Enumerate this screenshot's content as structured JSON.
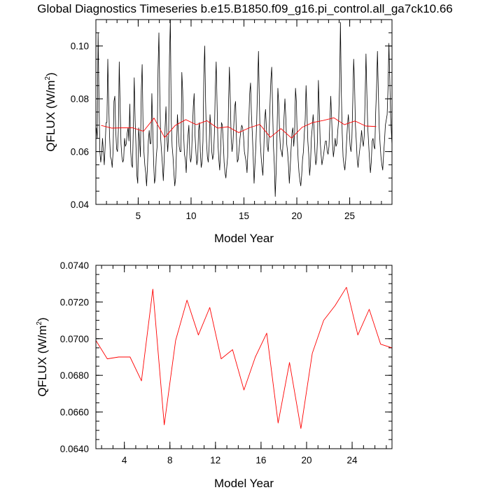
{
  "page": {
    "title": "Global Diagnostics Timeseries b.e15.B1850.f09_g16.pi_control.all_ga7ck10.66"
  },
  "colors": {
    "monthly_line": "#000000",
    "annual_line": "#ff0000",
    "frame": "#000000",
    "background": "#ffffff"
  },
  "chart_data": [
    {
      "type": "line",
      "title": "Global Diagnostics Timeseries b.e15.B1850.f09_g16.pi_control.all_ga7ck10.66",
      "xlabel": "Model Year",
      "ylabel": "QFLUX (W/m",
      "ylabel_superscript": "2",
      "ylabel_close": ")",
      "xlim": [
        1,
        29
      ],
      "ylim": [
        0.04,
        0.11
      ],
      "x_ticks": [
        5,
        10,
        15,
        20,
        25
      ],
      "x_tick_labels": [
        "5",
        "10",
        "15",
        "20",
        "25"
      ],
      "y_ticks": [
        0.04,
        0.06,
        0.08,
        0.1
      ],
      "y_tick_labels": [
        "0.04",
        "0.06",
        "0.08",
        "0.10"
      ],
      "grid": false,
      "legend": "none",
      "series": [
        {
          "style": "monthly",
          "color": "#000000",
          "x_start": 1.042,
          "x_step": 0.08333,
          "values": [
            0.069,
            0.065,
            0.105,
            0.08,
            0.06,
            0.056,
            0.059,
            0.065,
            0.06,
            0.055,
            0.062,
            0.071,
            0.071,
            0.095,
            0.078,
            0.066,
            0.058,
            0.057,
            0.054,
            0.06,
            0.079,
            0.081,
            0.068,
            0.061,
            0.06,
            0.068,
            0.094,
            0.077,
            0.063,
            0.058,
            0.056,
            0.057,
            0.065,
            0.062,
            0.063,
            0.067,
            0.069,
            0.064,
            0.078,
            0.06,
            0.055,
            0.054,
            0.069,
            0.088,
            0.072,
            0.062,
            0.051,
            0.048,
            0.069,
            0.064,
            0.058,
            0.083,
            0.093,
            0.07,
            0.06,
            0.055,
            0.052,
            0.047,
            0.054,
            0.064,
            0.068,
            0.063,
            0.063,
            0.082,
            0.069,
            0.056,
            0.048,
            0.05,
            0.058,
            0.062,
            0.091,
            0.105,
            0.082,
            0.065,
            0.06,
            0.055,
            0.049,
            0.057,
            0.069,
            0.077,
            0.066,
            0.06,
            0.066,
            0.096,
            0.11,
            0.072,
            0.062,
            0.058,
            0.052,
            0.047,
            0.05,
            0.061,
            0.074,
            0.068,
            0.062,
            0.06,
            0.06,
            0.09,
            0.083,
            0.067,
            0.059,
            0.057,
            0.052,
            0.061,
            0.066,
            0.07,
            0.059,
            0.056,
            0.058,
            0.068,
            0.077,
            0.082,
            0.066,
            0.06,
            0.055,
            0.057,
            0.068,
            0.071,
            0.06,
            0.054,
            0.056,
            0.064,
            0.089,
            0.1,
            0.079,
            0.064,
            0.058,
            0.056,
            0.062,
            0.074,
            0.069,
            0.06,
            0.057,
            0.059,
            0.067,
            0.084,
            0.094,
            0.078,
            0.063,
            0.057,
            0.053,
            0.06,
            0.071,
            0.07,
            0.064,
            0.056,
            0.052,
            0.05,
            0.054,
            0.058,
            0.078,
            0.092,
            0.08,
            0.065,
            0.06,
            0.063,
            0.07,
            0.077,
            0.079,
            0.065,
            0.056,
            0.057,
            0.061,
            0.065,
            0.068,
            0.07,
            0.069,
            0.066,
            0.06,
            0.058,
            0.056,
            0.052,
            0.06,
            0.071,
            0.082,
            0.086,
            0.074,
            0.067,
            0.058,
            0.048,
            0.055,
            0.062,
            0.072,
            0.085,
            0.098,
            0.079,
            0.064,
            0.058,
            0.054,
            0.051,
            0.06,
            0.072,
            0.076,
            0.069,
            0.062,
            0.06,
            0.066,
            0.077,
            0.087,
            0.092,
            0.077,
            0.062,
            0.055,
            0.043,
            0.052,
            0.066,
            0.084,
            0.078,
            0.067,
            0.061,
            0.06,
            0.058,
            0.064,
            0.073,
            0.08,
            0.073,
            0.063,
            0.06,
            0.055,
            0.048,
            0.054,
            0.061,
            0.067,
            0.069,
            0.062,
            0.067,
            0.084,
            0.079,
            0.065,
            0.057,
            0.052,
            0.049,
            0.047,
            0.051,
            0.057,
            0.06,
            0.067,
            0.072,
            0.085,
            0.075,
            0.064,
            0.059,
            0.051,
            0.055,
            0.065,
            0.069,
            0.074,
            0.069,
            0.06,
            0.055,
            0.057,
            0.065,
            0.087,
            0.076,
            0.064,
            0.059,
            0.055,
            0.057,
            0.059,
            0.062,
            0.064,
            0.064,
            0.06,
            0.059,
            0.062,
            0.071,
            0.081,
            0.073,
            0.063,
            0.058,
            0.061,
            0.065,
            0.062,
            0.063,
            0.068,
            0.072,
            0.085,
            0.109,
            0.083,
            0.067,
            0.058,
            0.055,
            0.053,
            0.057,
            0.064,
            0.07,
            0.074,
            0.068,
            0.062,
            0.06,
            0.065,
            0.079,
            0.095,
            0.086,
            0.07,
            0.064,
            0.057,
            0.054,
            0.058,
            0.061,
            0.064,
            0.068,
            0.064,
            0.062,
            0.066,
            0.08,
            0.097,
            0.082,
            0.069,
            0.063,
            0.057,
            0.052,
            0.056,
            0.064,
            0.065,
            0.062,
            0.061,
            0.075,
            0.084,
            0.098,
            0.083,
            0.069,
            0.063,
            0.058,
            0.055,
            0.053,
            0.059,
            0.064,
            0.07,
            0.072,
            0.074,
            0.084,
            0.101,
            0.087,
            0.073,
            0.066,
            0.059,
            0.054,
            0.055,
            0.061,
            0.063,
            0.062,
            0.06,
            0.061,
            0.069,
            0.089,
            0.101,
            0.087,
            0.072,
            0.063,
            0.058,
            0.055,
            0.057,
            0.06,
            0.059,
            0.063,
            0.067,
            0.074,
            0.082,
            0.09,
            0.079,
            0.067,
            0.06,
            0.055,
            0.06,
            0.066,
            0.073,
            0.086,
            0.1,
            0.103,
            0.084,
            0.068,
            0.064
          ]
        },
        {
          "style": "annual",
          "color": "#ff0000",
          "x": [
            1.5,
            2.5,
            3.5,
            4.5,
            5.5,
            6.5,
            7.5,
            8.5,
            9.5,
            10.5,
            11.5,
            12.5,
            13.5,
            14.5,
            15.5,
            16.5,
            17.5,
            18.5,
            19.5,
            20.5,
            21.5,
            22.5,
            23.5,
            24.5,
            25.5,
            26.5,
            27.5
          ],
          "values": [
            0.0699,
            0.0689,
            0.069,
            0.069,
            0.0677,
            0.0727,
            0.0653,
            0.0699,
            0.0721,
            0.0702,
            0.0717,
            0.0689,
            0.0694,
            0.0672,
            0.069,
            0.0703,
            0.0654,
            0.0687,
            0.0651,
            0.0692,
            0.071,
            0.0718,
            0.0728,
            0.0702,
            0.0716,
            0.0697,
            0.0695
          ]
        }
      ]
    },
    {
      "type": "line",
      "title": "",
      "xlabel": "Model Year",
      "ylabel": "QFLUX (W/m",
      "ylabel_superscript": "2",
      "ylabel_close": ")",
      "xlim": [
        1.5,
        27.5
      ],
      "ylim": [
        0.064,
        0.074
      ],
      "x_ticks": [
        4,
        8,
        12,
        16,
        20,
        24
      ],
      "x_tick_labels": [
        "4",
        "8",
        "12",
        "16",
        "20",
        "24"
      ],
      "y_ticks": [
        0.064,
        0.066,
        0.068,
        0.07,
        0.072,
        0.074
      ],
      "y_tick_labels": [
        "0.0640",
        "0.0660",
        "0.0680",
        "0.0700",
        "0.0720",
        "0.0740"
      ],
      "grid": false,
      "legend": "none",
      "series": [
        {
          "style": "annual",
          "color": "#ff0000",
          "x": [
            1.5,
            2.5,
            3.5,
            4.5,
            5.5,
            6.5,
            7.5,
            8.5,
            9.5,
            10.5,
            11.5,
            12.5,
            13.5,
            14.5,
            15.5,
            16.5,
            17.5,
            18.5,
            19.5,
            20.5,
            21.5,
            22.5,
            23.5,
            24.5,
            25.5,
            26.5,
            27.5
          ],
          "values": [
            0.0699,
            0.0689,
            0.069,
            0.069,
            0.0677,
            0.0727,
            0.0653,
            0.0699,
            0.0721,
            0.0702,
            0.0717,
            0.0689,
            0.0694,
            0.0672,
            0.069,
            0.0703,
            0.0654,
            0.0687,
            0.0651,
            0.0692,
            0.071,
            0.0718,
            0.0728,
            0.0702,
            0.0716,
            0.0697,
            0.0695
          ]
        }
      ]
    }
  ]
}
